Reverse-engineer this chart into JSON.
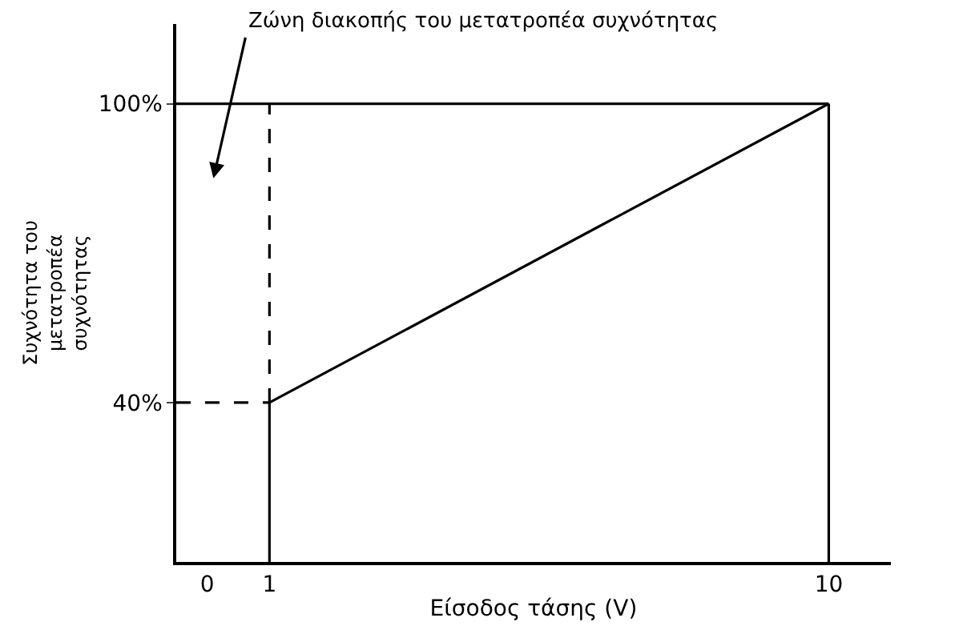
{
  "chart_data": {
    "type": "line",
    "xlabel": "Είσοδος τάσης (V)",
    "ylabel": "Συχνότητα του\nμετατροπέα\nσυχνότητας",
    "xlim": [
      -0.5,
      11
    ],
    "ylim": [
      8,
      116
    ],
    "xticks": [
      0,
      1,
      10
    ],
    "yticks": [
      {
        "value": 40,
        "label": "40%"
      },
      {
        "value": 100,
        "label": "100%"
      }
    ],
    "marker": "none",
    "series": [
      {
        "color": "#000000",
        "line_style": "solid",
        "x": [
          1,
          10
        ],
        "values": [
          40,
          100
        ]
      },
      {
        "color": "#000000",
        "line_style": "solid",
        "x": [
          1,
          1
        ],
        "values": [
          8,
          40
        ]
      },
      {
        "color": "#000000",
        "line_style": "dashed",
        "x": [
          1,
          1
        ],
        "values": [
          40,
          100
        ]
      },
      {
        "color": "#000000",
        "line_style": "dashed",
        "x": [
          -0.5,
          1
        ],
        "values": [
          40,
          40
        ]
      },
      {
        "color": "#000000",
        "line_style": "solid",
        "x": [
          -0.5,
          10
        ],
        "values": [
          100,
          100
        ]
      },
      {
        "color": "#000000",
        "line_style": "solid",
        "x": [
          10,
          10
        ],
        "values": [
          8,
          100
        ]
      }
    ],
    "annotations": [
      "Ζώνη διακοπής του μετατροπέα συχνότητας"
    ]
  }
}
